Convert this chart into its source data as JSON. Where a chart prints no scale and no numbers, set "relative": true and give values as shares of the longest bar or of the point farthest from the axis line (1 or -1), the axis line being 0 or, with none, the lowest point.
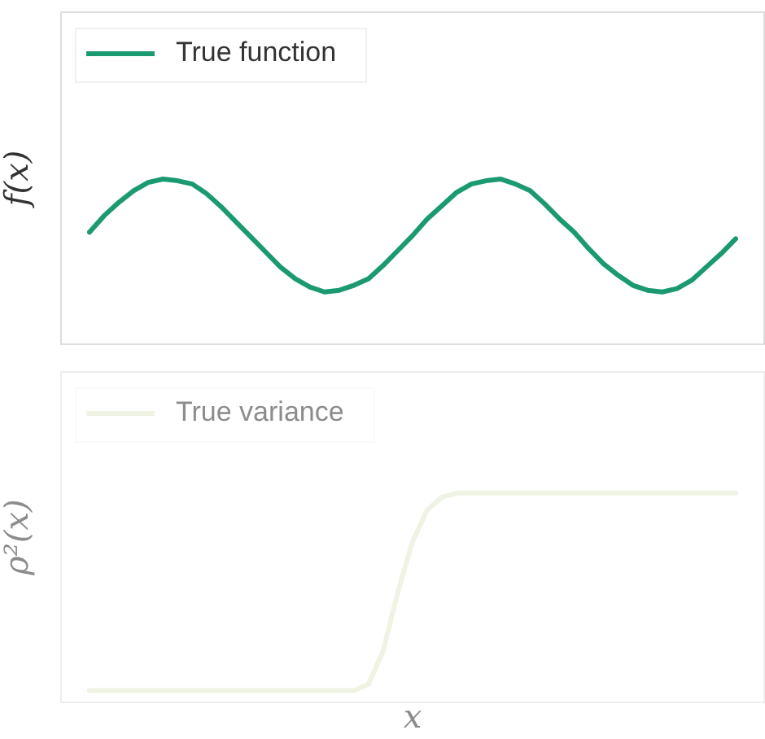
{
  "chart_data": [
    {
      "type": "line",
      "relative": true,
      "ylabel": "f(x)",
      "legend": "top left",
      "grid": false,
      "marker": "none",
      "line_style": "solid",
      "categories": [
        null,
        null,
        null,
        null,
        null,
        null,
        null,
        null,
        null,
        null,
        null,
        null,
        null,
        null,
        null,
        null,
        null,
        null,
        null,
        null,
        null,
        null,
        null,
        null,
        null,
        null,
        null,
        null,
        null,
        null,
        null,
        null,
        null,
        null,
        null,
        null,
        null,
        null,
        null,
        null,
        null,
        null,
        null,
        null,
        null
      ],
      "series": [
        {
          "name": "True function",
          "color": "#1b9a72",
          "values": [
            0.68,
            0.78,
            0.86,
            0.93,
            0.98,
            1,
            0.99,
            0.97,
            0.91,
            0.83,
            0.74,
            0.65,
            0.56,
            0.47,
            0.4,
            0.35,
            0.32,
            0.33,
            0.36,
            0.4,
            0.48,
            0.57,
            0.66,
            0.76,
            0.84,
            0.92,
            0.97,
            0.99,
            1,
            0.97,
            0.93,
            0.85,
            0.76,
            0.68,
            0.58,
            0.49,
            0.42,
            0.36,
            0.33,
            0.32,
            0.34,
            0.39,
            0.47,
            0.55,
            0.64
          ]
        }
      ]
    },
    {
      "type": "line",
      "relative": true,
      "ylabel": "ρ²(x)",
      "xlabel": "x",
      "legend": "top left",
      "grid": false,
      "marker": "none",
      "line_style": "solid",
      "categories": [
        null,
        null,
        null,
        null,
        null,
        null,
        null,
        null,
        null,
        null,
        null,
        null,
        null,
        null,
        null,
        null,
        null,
        null,
        null,
        null,
        null,
        null,
        null,
        null,
        null,
        null,
        null,
        null,
        null,
        null,
        null,
        null,
        null,
        null,
        null,
        null,
        null,
        null,
        null,
        null,
        null,
        null,
        null,
        null,
        null
      ],
      "series": [
        {
          "name": "True variance",
          "color": "#eef3e4",
          "values": [
            0.06,
            0.06,
            0.06,
            0.06,
            0.06,
            0.06,
            0.06,
            0.06,
            0.06,
            0.06,
            0.06,
            0.06,
            0.06,
            0.06,
            0.06,
            0.06,
            0.06,
            0.06,
            0.06,
            0.09,
            0.25,
            0.53,
            0.77,
            0.92,
            0.98,
            1,
            1,
            1,
            1,
            1,
            1,
            1,
            1,
            1,
            1,
            1,
            1,
            1,
            1,
            1,
            1,
            1,
            1,
            1,
            1
          ]
        }
      ]
    }
  ]
}
